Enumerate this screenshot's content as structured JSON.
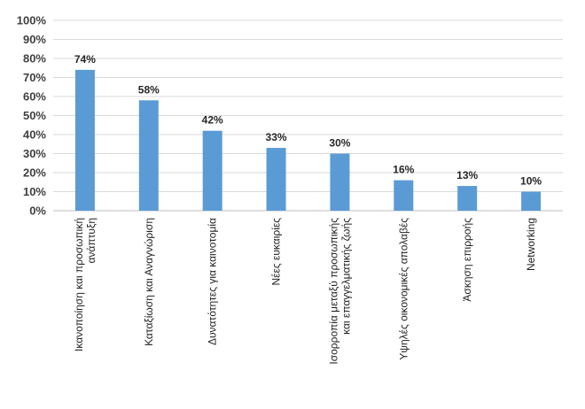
{
  "chart_data": {
    "type": "bar",
    "categories": [
      [
        "Ικανοποίηση και προσωπική",
        "ανάπτυξη"
      ],
      [
        "Καταξίωση και Αναγνώριση"
      ],
      [
        "Δυνατότητες για καινοτομία"
      ],
      [
        "Νέες ευκαιρίες"
      ],
      [
        "Ισορροπία  μεταξύ προσωπικής",
        "και επαγγελματικής ζωής"
      ],
      [
        "Υψηλές οικονομικές  απολαβές"
      ],
      [
        "Άσκηση επιρροής"
      ],
      [
        "Networking"
      ]
    ],
    "values": [
      74,
      58,
      42,
      33,
      30,
      16,
      13,
      10
    ],
    "data_labels": [
      "74%",
      "58%",
      "42%",
      "33%",
      "30%",
      "16%",
      "13%",
      "10%"
    ],
    "y_ticks": [
      "0%",
      "10%",
      "20%",
      "30%",
      "40%",
      "50%",
      "60%",
      "70%",
      "80%",
      "90%",
      "100%"
    ],
    "ylim": [
      0,
      100
    ],
    "grid": true,
    "legend": "none",
    "bar_color": "#5b9bd5",
    "title": "",
    "xlabel": "",
    "ylabel": ""
  }
}
